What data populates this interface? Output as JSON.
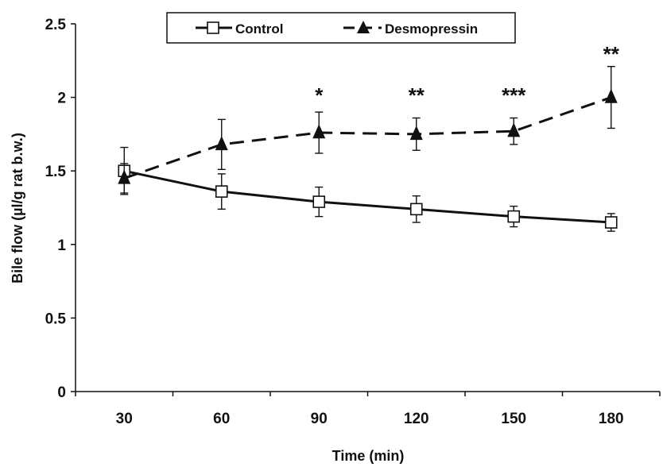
{
  "chart_data": {
    "type": "line",
    "title": "",
    "xlabel": "Time (min)",
    "ylabel": "Bile flow (µl/g rat b.w.)",
    "categories": [
      "30",
      "60",
      "90",
      "120",
      "150",
      "180"
    ],
    "ylim": [
      0,
      2.5
    ],
    "yticks": [
      "0",
      "0.5",
      "1",
      "1.5",
      "2",
      "2.5"
    ],
    "legend_position": "top-center",
    "grid": false,
    "series": [
      {
        "name": "Control",
        "marker": "open-square",
        "line_style": "solid",
        "values": [
          1.5,
          1.36,
          1.29,
          1.24,
          1.19,
          1.15
        ],
        "error": [
          0.16,
          0.12,
          0.1,
          0.09,
          0.07,
          0.06
        ]
      },
      {
        "name": "Desmopressin",
        "marker": "filled-triangle",
        "line_style": "dashed",
        "values": [
          1.45,
          1.68,
          1.76,
          1.75,
          1.77,
          2.0
        ],
        "error": [
          0.1,
          0.17,
          0.14,
          0.11,
          0.09,
          0.21
        ]
      }
    ],
    "annotations": [
      {
        "category": "90",
        "text": "*",
        "y": 2.03
      },
      {
        "category": "120",
        "text": "**",
        "y": 2.03
      },
      {
        "category": "150",
        "text": "***",
        "y": 2.03
      },
      {
        "category": "180",
        "text": "**",
        "y": 2.31
      }
    ],
    "colors": {
      "line": "#111111",
      "background": "#ffffff"
    }
  }
}
